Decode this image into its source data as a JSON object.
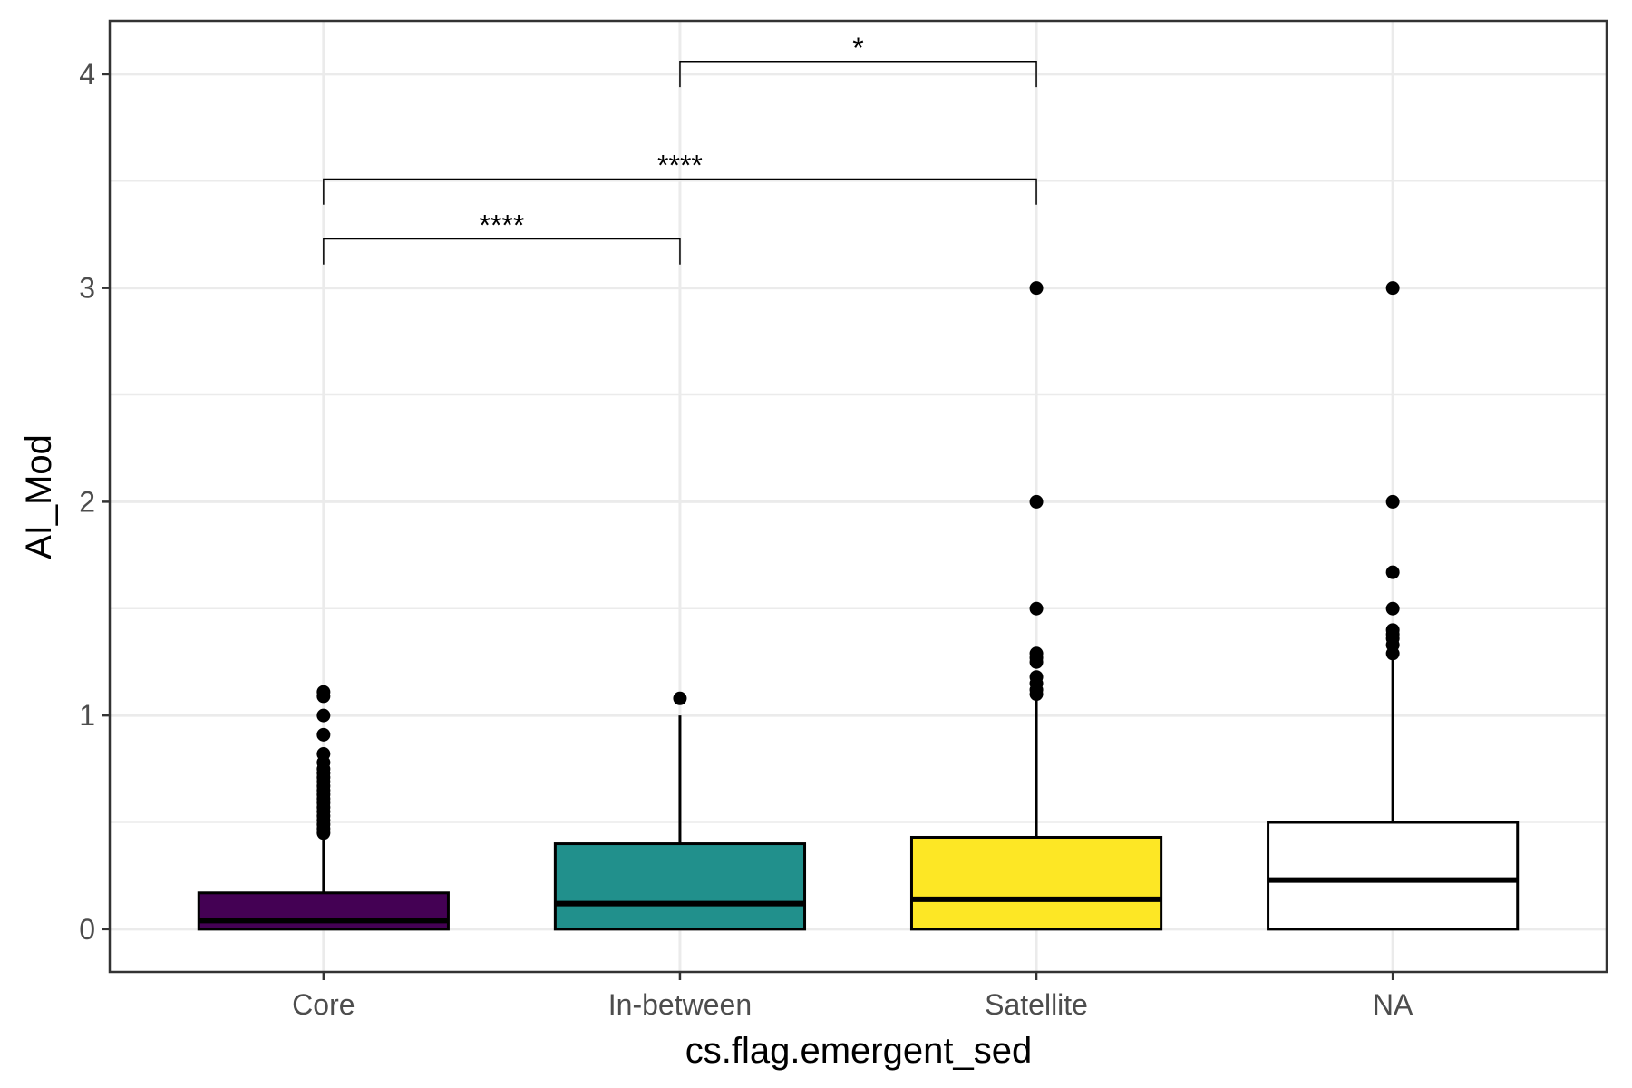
{
  "chart_data": {
    "type": "boxplot",
    "xlabel": "cs.flag.emergent_sed",
    "ylabel": "AI_Mod",
    "ylim": [
      -0.2,
      4.25
    ],
    "yticks": [
      0,
      1,
      2,
      3,
      4
    ],
    "y_minor_ticks": [
      0.5,
      1.5,
      2.5,
      3.5
    ],
    "grid": true,
    "categories": [
      "Core",
      "In-between",
      "Satellite",
      "NA"
    ],
    "boxes": [
      {
        "category": "Core",
        "fill": "#440154",
        "q1": 0.0,
        "median": 0.04,
        "q3": 0.17,
        "whisker_low": 0.0,
        "whisker_high": 0.43,
        "outliers": [
          0.45,
          0.47,
          0.49,
          0.51,
          0.53,
          0.55,
          0.57,
          0.59,
          0.61,
          0.63,
          0.65,
          0.67,
          0.69,
          0.71,
          0.73,
          0.75,
          0.78,
          0.82,
          0.91,
          1.0,
          1.09,
          1.11
        ]
      },
      {
        "category": "In-between",
        "fill": "#21908c",
        "q1": 0.0,
        "median": 0.12,
        "q3": 0.4,
        "whisker_low": 0.0,
        "whisker_high": 1.0,
        "outliers": [
          1.08
        ]
      },
      {
        "category": "Satellite",
        "fill": "#fde725",
        "q1": 0.0,
        "median": 0.14,
        "q3": 0.43,
        "whisker_low": 0.0,
        "whisker_high": 1.08,
        "outliers": [
          1.1,
          1.12,
          1.15,
          1.18,
          1.25,
          1.27,
          1.29,
          1.5,
          2.0,
          3.0
        ]
      },
      {
        "category": "NA",
        "fill": "#ffffff",
        "q1": 0.0,
        "median": 0.23,
        "q3": 0.5,
        "whisker_low": 0.0,
        "whisker_high": 1.28,
        "outliers": [
          1.29,
          1.33,
          1.36,
          1.38,
          1.4,
          1.5,
          1.67,
          2.0,
          3.0
        ]
      }
    ],
    "annotations": [
      {
        "from": "In-between",
        "to": "Satellite",
        "label": "*",
        "y": 4.06,
        "tick_bottom": 3.94
      },
      {
        "from": "Core",
        "to": "Satellite",
        "label": "****",
        "y": 3.51,
        "tick_bottom": 3.39
      },
      {
        "from": "Core",
        "to": "In-between",
        "label": "****",
        "y": 3.23,
        "tick_bottom": 3.11
      }
    ]
  }
}
